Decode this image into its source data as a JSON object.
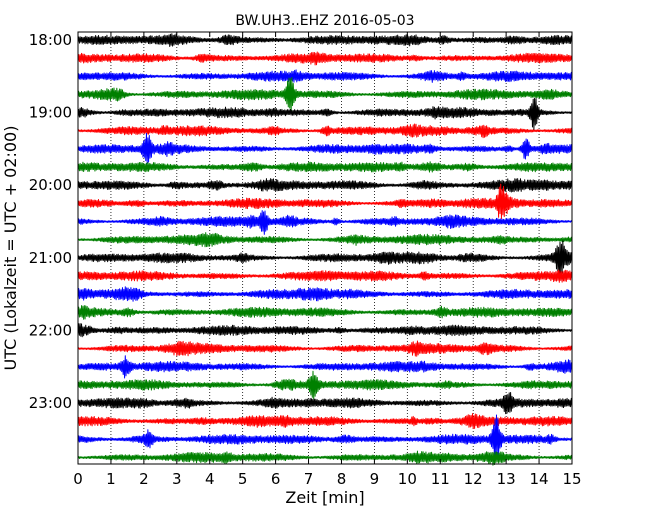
{
  "chart_data": {
    "type": "line",
    "subtype": "helicorder",
    "title": "BW.UH3..EHZ 2016-05-03",
    "xlabel": "Zeit  [min]",
    "ylabel": "UTC (Lokalzeit = UTC + 02:00)",
    "xlim": [
      0,
      15
    ],
    "x_ticks": [
      "0",
      "1",
      "2",
      "3",
      "4",
      "5",
      "6",
      "7",
      "8",
      "9",
      "10",
      "11",
      "12",
      "13",
      "14",
      "15"
    ],
    "y_tick_labels": [
      "18:00",
      "19:00",
      "20:00",
      "21:00",
      "22:00",
      "23:00"
    ],
    "grid": "vertical dotted lines at each minute",
    "trace_colors": [
      "#000000",
      "#ff0000",
      "#0000ff",
      "#008000"
    ],
    "traces": [
      {
        "start": "18:00"
      },
      {
        "start": "18:15"
      },
      {
        "start": "18:30"
      },
      {
        "start": "18:45"
      },
      {
        "start": "19:00"
      },
      {
        "start": "19:15"
      },
      {
        "start": "19:30"
      },
      {
        "start": "19:45"
      },
      {
        "start": "20:00"
      },
      {
        "start": "20:15"
      },
      {
        "start": "20:30"
      },
      {
        "start": "20:45"
      },
      {
        "start": "21:00"
      },
      {
        "start": "21:15"
      },
      {
        "start": "21:30"
      },
      {
        "start": "21:45"
      },
      {
        "start": "22:00"
      },
      {
        "start": "22:15"
      },
      {
        "start": "22:30"
      },
      {
        "start": "22:45"
      },
      {
        "start": "23:00"
      },
      {
        "start": "23:15"
      },
      {
        "start": "23:30"
      },
      {
        "start": "23:45"
      }
    ],
    "events": [
      {
        "trace": 3,
        "minute": 6.45,
        "amp": 1.7
      },
      {
        "trace": 4,
        "minute": 13.85,
        "amp": 1.4
      },
      {
        "trace": 6,
        "minute": 2.1,
        "amp": 1.5
      },
      {
        "trace": 6,
        "minute": 13.6,
        "amp": 1.0
      },
      {
        "trace": 9,
        "minute": 12.85,
        "amp": 1.3
      },
      {
        "trace": 10,
        "minute": 5.65,
        "amp": 1.0
      },
      {
        "trace": 12,
        "minute": 14.65,
        "amp": 1.3
      },
      {
        "trace": 18,
        "minute": 1.45,
        "amp": 1.0
      },
      {
        "trace": 19,
        "minute": 7.15,
        "amp": 1.0
      },
      {
        "trace": 20,
        "minute": 13.05,
        "amp": 1.0
      },
      {
        "trace": 22,
        "minute": 12.7,
        "amp": 2.2
      },
      {
        "trace": 22,
        "minute": 2.15,
        "amp": 0.8
      }
    ]
  }
}
